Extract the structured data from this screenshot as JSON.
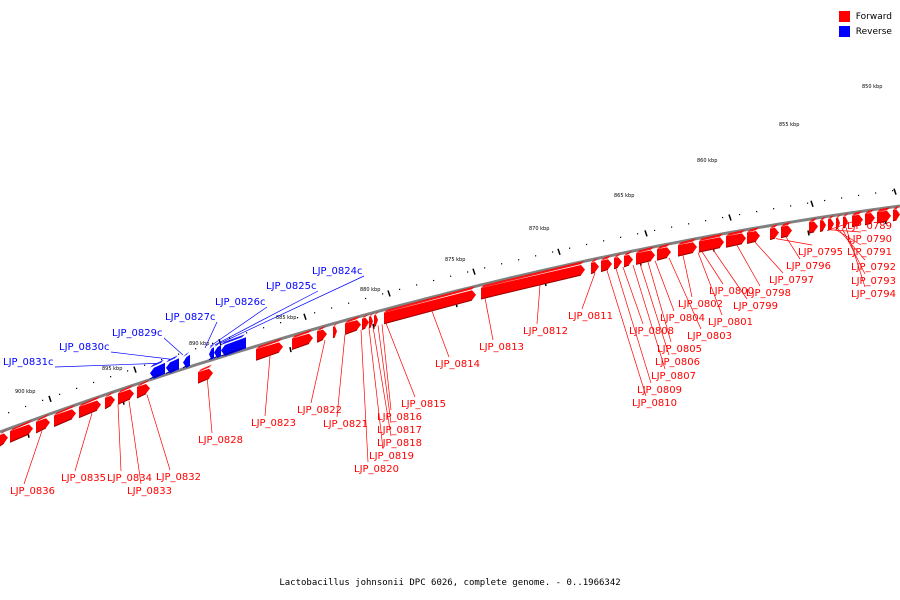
{
  "legend": [
    {
      "label": "Forward",
      "color": "#ff0000"
    },
    {
      "label": "Reverse",
      "color": "#0000ff"
    }
  ],
  "caption": "Lactobacillus johnsonii DPC 6026, complete genome. - 0..1966342",
  "colors": {
    "forward": "#ff0000",
    "reverse": "#0000ff",
    "axis": "#808080",
    "tick": "#000000"
  },
  "ticks": [
    "850 kbp",
    "855 kbp",
    "860 kbp",
    "865 kbp",
    "870 kbp",
    "875 kbp",
    "880 kbp",
    "885 kbp",
    "890 kbp",
    "895 kbp",
    "900 kbp"
  ],
  "genes": [
    {
      "id": "LJP_0789",
      "strand": "forward"
    },
    {
      "id": "LJP_0790",
      "strand": "forward"
    },
    {
      "id": "LJP_0791",
      "strand": "forward"
    },
    {
      "id": "LJP_0792",
      "strand": "forward"
    },
    {
      "id": "LJP_0793",
      "strand": "forward"
    },
    {
      "id": "LJP_0794",
      "strand": "forward"
    },
    {
      "id": "LJP_0795",
      "strand": "forward"
    },
    {
      "id": "LJP_0796",
      "strand": "forward"
    },
    {
      "id": "LJP_0797",
      "strand": "forward"
    },
    {
      "id": "LJP_0798",
      "strand": "forward"
    },
    {
      "id": "LJP_0799",
      "strand": "forward"
    },
    {
      "id": "LJP_0800",
      "strand": "forward"
    },
    {
      "id": "LJP_0801",
      "strand": "forward"
    },
    {
      "id": "LJP_0802",
      "strand": "forward"
    },
    {
      "id": "LJP_0803",
      "strand": "forward"
    },
    {
      "id": "LJP_0804",
      "strand": "forward"
    },
    {
      "id": "LJP_0805",
      "strand": "forward"
    },
    {
      "id": "LJP_0806",
      "strand": "forward"
    },
    {
      "id": "LJP_0807",
      "strand": "forward"
    },
    {
      "id": "LJP_0808",
      "strand": "forward"
    },
    {
      "id": "LJP_0809",
      "strand": "forward"
    },
    {
      "id": "LJP_0810",
      "strand": "forward"
    },
    {
      "id": "LJP_0811",
      "strand": "forward"
    },
    {
      "id": "LJP_0812",
      "strand": "forward"
    },
    {
      "id": "LJP_0813",
      "strand": "forward"
    },
    {
      "id": "LJP_0814",
      "strand": "forward"
    },
    {
      "id": "LJP_0815",
      "strand": "forward"
    },
    {
      "id": "LJP_0816",
      "strand": "forward"
    },
    {
      "id": "LJP_0817",
      "strand": "forward"
    },
    {
      "id": "LJP_0818",
      "strand": "forward"
    },
    {
      "id": "LJP_0819",
      "strand": "forward"
    },
    {
      "id": "LJP_0820",
      "strand": "forward"
    },
    {
      "id": "LJP_0821",
      "strand": "forward"
    },
    {
      "id": "LJP_0822",
      "strand": "forward"
    },
    {
      "id": "LJP_0823",
      "strand": "forward"
    },
    {
      "id": "LJP_0824c",
      "strand": "reverse"
    },
    {
      "id": "LJP_0825c",
      "strand": "reverse"
    },
    {
      "id": "LJP_0826c",
      "strand": "reverse"
    },
    {
      "id": "LJP_0827c",
      "strand": "reverse"
    },
    {
      "id": "LJP_0828",
      "strand": "forward"
    },
    {
      "id": "LJP_0829c",
      "strand": "reverse"
    },
    {
      "id": "LJP_0830c",
      "strand": "reverse"
    },
    {
      "id": "LJP_0831c",
      "strand": "reverse"
    },
    {
      "id": "LJP_0832",
      "strand": "forward"
    },
    {
      "id": "LJP_0833",
      "strand": "forward"
    },
    {
      "id": "LJP_0834",
      "strand": "forward"
    },
    {
      "id": "LJP_0835",
      "strand": "forward"
    },
    {
      "id": "LJP_0836",
      "strand": "forward"
    }
  ]
}
